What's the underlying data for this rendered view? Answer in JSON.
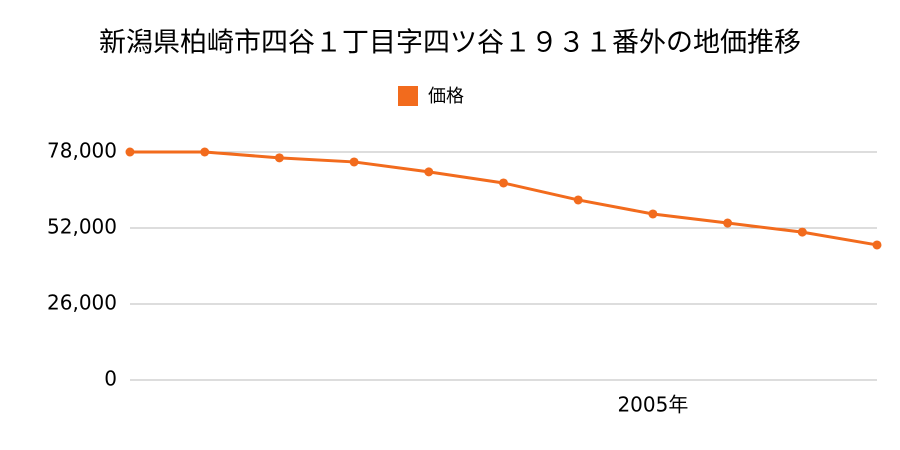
{
  "chart_data": {
    "type": "line",
    "title": "新潟県柏崎市四谷１丁目字四ツ谷１９３１番外の地価推移",
    "categories": [
      null,
      null,
      null,
      null,
      null,
      null,
      null,
      "2005年",
      null,
      null,
      null
    ],
    "series": [
      {
        "name": "価格",
        "color": "#f26b1d",
        "values": [
          78000,
          78000,
          76000,
          74600,
          71200,
          67400,
          61600,
          56800,
          53700,
          50600,
          46200
        ]
      }
    ],
    "ylim": [
      0,
      78000
    ],
    "yticks": [
      0,
      {
        "value": 26000,
        "label": "26,000"
      },
      {
        "value": 52000,
        "label": "52,000"
      },
      {
        "value": 78000,
        "label": "78,000"
      }
    ],
    "grid": true
  }
}
